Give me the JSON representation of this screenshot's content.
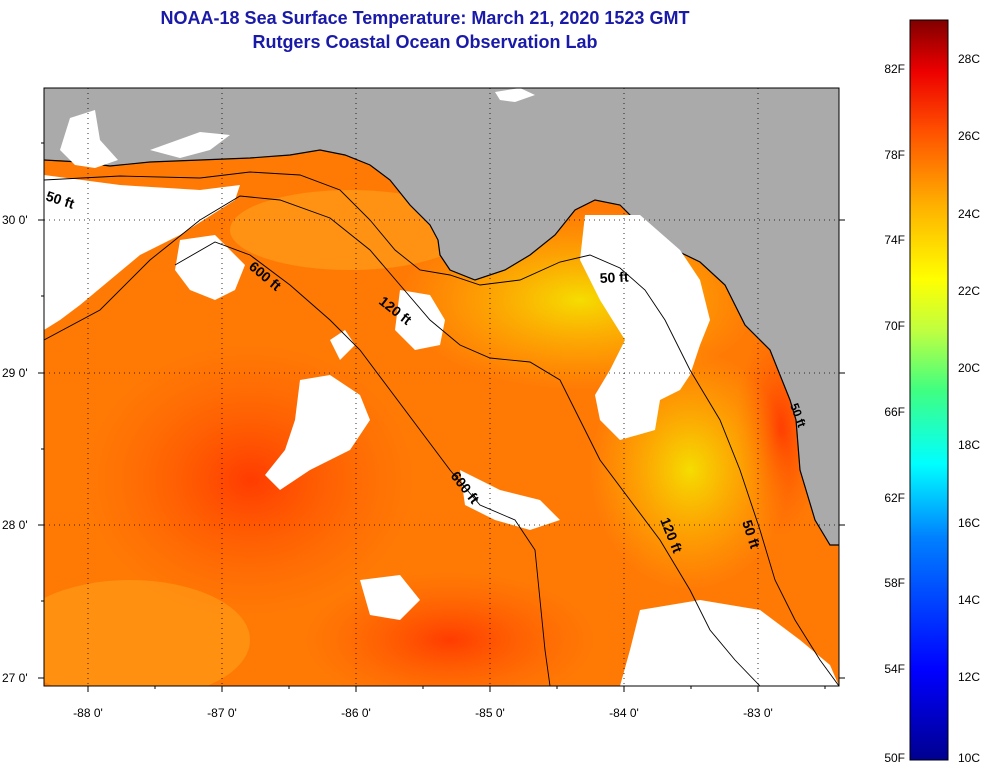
{
  "header": {
    "title": "NOAA-18 Sea Surface Temperature:  March 21, 2020 1523 GMT",
    "subtitle": "Rutgers Coastal Ocean Observation Lab"
  },
  "map": {
    "lat_labels": [
      "30 0'",
      "29 0'",
      "28 0'",
      "27 0'"
    ],
    "lon_labels": [
      "-88 0'",
      "-87 0'",
      "-86 0'",
      "-85 0'",
      "-84 0'",
      "-83 0'"
    ],
    "contours": {
      "c50_west": "50 ft",
      "c50_east": "50 ft",
      "c50_coast": "50 ft",
      "c120_north": "120 ft",
      "c120_east": "120 ft",
      "c600_north": "600 ft",
      "c600_south": "600 ft"
    }
  },
  "colorbar": {
    "fahrenheit": [
      "82F",
      "78F",
      "74F",
      "70F",
      "66F",
      "62F",
      "58F",
      "54F",
      "50F"
    ],
    "celsius": [
      "28C",
      "26C",
      "24C",
      "22C",
      "20C",
      "18C",
      "16C",
      "14C",
      "12C",
      "10C"
    ]
  },
  "colors": {
    "title": "#1a1aa8",
    "land": "#aaaaaa",
    "cloud": "#ffffff",
    "sst_warm": "#ff6a00",
    "sst_hot": "#ff3a00",
    "sst_mild": "#ffd000"
  }
}
